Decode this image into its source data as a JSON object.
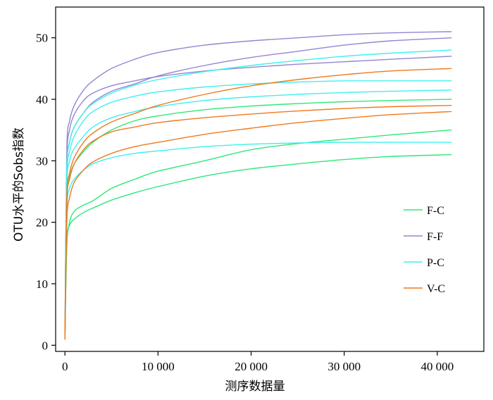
{
  "chart_data": {
    "type": "line",
    "title": "",
    "xlabel": "测序数据量",
    "ylabel": "OTU水平的Sobs指数",
    "xlim": [
      -1000,
      45000
    ],
    "ylim": [
      -1,
      55
    ],
    "xticks": [
      0,
      10000,
      20000,
      30000,
      40000
    ],
    "xtick_labels": [
      "0",
      "10 000",
      "20 000",
      "30 000",
      "40 000"
    ],
    "yticks": [
      0,
      10,
      20,
      30,
      40,
      50
    ],
    "ytick_labels": [
      "0",
      "10",
      "20",
      "30",
      "40",
      "50"
    ],
    "grid": false,
    "legend": {
      "position": "right",
      "entries": [
        {
          "label": "F-C",
          "color": "#2ee87a"
        },
        {
          "label": "F-F",
          "color": "#9486cf"
        },
        {
          "label": "P-C",
          "color": "#3ff0ee"
        },
        {
          "label": "V-C",
          "color": "#ef7a1e"
        }
      ]
    },
    "x": [
      0,
      200,
      500,
      1000,
      2000,
      3000,
      5000,
      7500,
      10000,
      15000,
      20000,
      25000,
      30000,
      35000,
      41500
    ],
    "series": [
      {
        "group": "F-C",
        "color": "#2ee87a",
        "values": [
          1,
          16,
          20,
          21.8,
          22.8,
          23.5,
          25.5,
          27,
          28.3,
          30,
          31.8,
          32.8,
          33.5,
          34.2,
          35
        ]
      },
      {
        "group": "F-C",
        "color": "#2ee87a",
        "values": [
          1,
          17,
          19.5,
          20.5,
          21.6,
          22.3,
          23.6,
          24.8,
          25.8,
          27.5,
          28.7,
          29.5,
          30.2,
          30.7,
          31
        ]
      },
      {
        "group": "F-C",
        "color": "#2ee87a",
        "values": [
          1,
          24,
          27.5,
          29.5,
          31.5,
          33,
          35,
          36.5,
          37.3,
          38.3,
          38.9,
          39.3,
          39.6,
          39.8,
          40
        ]
      },
      {
        "group": "F-F",
        "color": "#9486cf",
        "values": [
          1,
          32,
          36.5,
          39,
          41.5,
          43,
          45,
          46.5,
          47.6,
          48.8,
          49.5,
          50,
          50.5,
          50.8,
          51
        ]
      },
      {
        "group": "F-F",
        "color": "#9486cf",
        "values": [
          1,
          30,
          35,
          37.5,
          39.8,
          41,
          42.2,
          43,
          43.7,
          44.6,
          45.2,
          45.7,
          46.1,
          46.5,
          47
        ]
      },
      {
        "group": "F-F",
        "color": "#9486cf",
        "values": [
          1,
          28,
          33,
          35.5,
          37.8,
          39.5,
          41.3,
          42.5,
          43.8,
          45.5,
          46.8,
          47.8,
          48.8,
          49.5,
          50
        ]
      },
      {
        "group": "P-C",
        "color": "#3ff0ee",
        "values": [
          1,
          26,
          30,
          32,
          34,
          35.5,
          37,
          38,
          38.8,
          39.8,
          40.4,
          40.8,
          41.1,
          41.3,
          41.5
        ]
      },
      {
        "group": "P-C",
        "color": "#3ff0ee",
        "values": [
          1,
          22,
          25.5,
          27,
          28.5,
          29.5,
          30.5,
          31.2,
          31.6,
          32.3,
          32.7,
          32.9,
          33,
          33,
          33
        ]
      },
      {
        "group": "P-C",
        "color": "#3ff0ee",
        "values": [
          1,
          29,
          33,
          35.5,
          37.8,
          39.3,
          41,
          42.3,
          43.2,
          44.5,
          45.5,
          46.3,
          47,
          47.5,
          48
        ]
      },
      {
        "group": "P-C",
        "color": "#3ff0ee",
        "values": [
          1,
          27,
          31.5,
          34,
          36.5,
          38,
          39.5,
          40.5,
          41.2,
          42,
          42.5,
          42.8,
          43,
          43,
          43
        ]
      },
      {
        "group": "V-C",
        "color": "#ef7a1e",
        "values": [
          1,
          20,
          24,
          26.5,
          28.5,
          29.8,
          31.2,
          32.3,
          33,
          34.3,
          35.3,
          36.2,
          36.9,
          37.5,
          38
        ]
      },
      {
        "group": "V-C",
        "color": "#ef7a1e",
        "values": [
          1,
          23,
          27,
          29.5,
          31.8,
          33.2,
          34.7,
          35.5,
          36.2,
          37,
          37.6,
          38.1,
          38.5,
          38.8,
          39
        ]
      },
      {
        "group": "V-C",
        "color": "#ef7a1e",
        "values": [
          1,
          24,
          28,
          30.5,
          33,
          34.5,
          36.3,
          37.7,
          39,
          40.8,
          42.2,
          43.2,
          44,
          44.6,
          45
        ]
      }
    ]
  }
}
